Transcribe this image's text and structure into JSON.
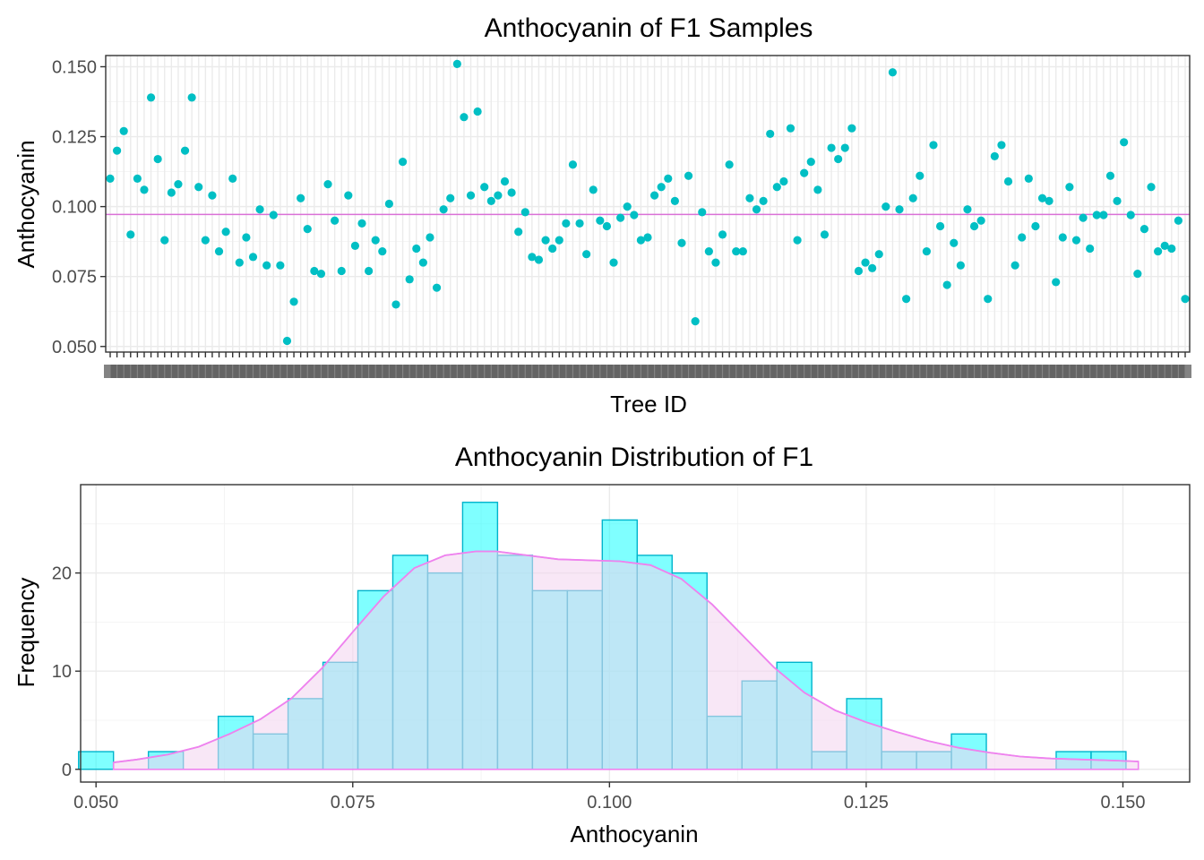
{
  "chart_data": [
    {
      "type": "scatter",
      "title": "Anthocyanin of F1 Samples",
      "xlabel": "Tree ID",
      "ylabel": "Anthocyanin",
      "ylim": [
        0.048,
        0.154
      ],
      "yticks": [
        "0.050",
        "0.075",
        "0.100",
        "0.125",
        "0.150"
      ],
      "x_tick_labels_overlapping": true,
      "point_color": "#00BFC4",
      "mean_line": 0.0972,
      "mean_line_color": "#DA70D6",
      "values": [
        0.11,
        0.12,
        0.127,
        0.09,
        0.11,
        0.106,
        0.139,
        0.117,
        0.088,
        0.105,
        0.108,
        0.12,
        0.139,
        0.107,
        0.088,
        0.104,
        0.084,
        0.091,
        0.11,
        0.08,
        0.089,
        0.082,
        0.099,
        0.079,
        0.097,
        0.079,
        0.052,
        0.066,
        0.103,
        0.092,
        0.077,
        0.076,
        0.108,
        0.095,
        0.077,
        0.104,
        0.086,
        0.094,
        0.077,
        0.088,
        0.084,
        0.101,
        0.065,
        0.116,
        0.074,
        0.085,
        0.08,
        0.089,
        0.071,
        0.099,
        0.103,
        0.151,
        0.132,
        0.104,
        0.134,
        0.107,
        0.102,
        0.104,
        0.109,
        0.105,
        0.091,
        0.098,
        0.082,
        0.081,
        0.088,
        0.085,
        0.088,
        0.094,
        0.115,
        0.094,
        0.083,
        0.106,
        0.095,
        0.093,
        0.08,
        0.096,
        0.1,
        0.097,
        0.088,
        0.089,
        0.104,
        0.107,
        0.11,
        0.102,
        0.087,
        0.111,
        0.059,
        0.098,
        0.084,
        0.08,
        0.09,
        0.115,
        0.084,
        0.084,
        0.103,
        0.099,
        0.102,
        0.126,
        0.107,
        0.109,
        0.128,
        0.088,
        0.112,
        0.116,
        0.106,
        0.09,
        0.121,
        0.117,
        0.121,
        0.128,
        0.077,
        0.08,
        0.078,
        0.083,
        0.1,
        0.148,
        0.099,
        0.067,
        0.103,
        0.111,
        0.084,
        0.122,
        0.093,
        0.072,
        0.087,
        0.079,
        0.099,
        0.093,
        0.095,
        0.067,
        0.118,
        0.122,
        0.109,
        0.079,
        0.089,
        0.11,
        0.093,
        0.103,
        0.102,
        0.073,
        0.089,
        0.107,
        0.088,
        0.096,
        0.085,
        0.097,
        0.097,
        0.111,
        0.102,
        0.123,
        0.097,
        0.076,
        0.092,
        0.107,
        0.084,
        0.086,
        0.085,
        0.095,
        0.067
      ]
    },
    {
      "type": "histogram",
      "title": "Anthocyanin Distribution of F1",
      "xlabel": "Anthocyanin",
      "ylabel": "Frequency",
      "xlim": [
        0.0485,
        0.1565
      ],
      "ylim": [
        -1.3,
        29
      ],
      "xticks": [
        "0.050",
        "0.075",
        "0.100",
        "0.125",
        "0.150"
      ],
      "yticks": [
        "0",
        "10",
        "20"
      ],
      "bins": {
        "start": 0.05,
        "width": 0.0034,
        "counts": [
          1.8,
          0,
          1.8,
          0,
          5.4,
          3.6,
          7.2,
          10.9,
          18.2,
          21.8,
          20.0,
          27.2,
          21.8,
          18.2,
          18.2,
          25.4,
          21.8,
          20.0,
          5.4,
          9.0,
          10.9,
          1.8,
          7.2,
          1.8,
          1.8,
          3.6,
          0,
          0,
          1.8,
          1.8
        ]
      },
      "bar_fill": "#00FFFF",
      "bar_stroke": "#00B4CC",
      "density_color": "#EE82EE",
      "density_fill": "#F2D4EE",
      "density": {
        "x": [
          0.0517,
          0.054,
          0.057,
          0.06,
          0.063,
          0.066,
          0.069,
          0.072,
          0.075,
          0.078,
          0.081,
          0.084,
          0.087,
          0.089,
          0.092,
          0.095,
          0.098,
          0.101,
          0.104,
          0.107,
          0.11,
          0.113,
          0.116,
          0.119,
          0.122,
          0.125,
          0.128,
          0.131,
          0.134,
          0.137,
          0.14,
          0.143,
          0.146,
          0.149,
          0.1515
        ],
        "y": [
          0.7,
          1.0,
          1.5,
          2.3,
          3.6,
          5.1,
          7.2,
          10.3,
          14.0,
          17.6,
          20.5,
          21.8,
          22.2,
          22.2,
          21.8,
          21.4,
          21.3,
          21.2,
          20.8,
          19.4,
          16.8,
          13.6,
          10.4,
          7.8,
          6.0,
          4.8,
          3.8,
          2.9,
          2.2,
          1.7,
          1.3,
          1.1,
          1.0,
          0.9,
          0.8
        ]
      }
    }
  ]
}
